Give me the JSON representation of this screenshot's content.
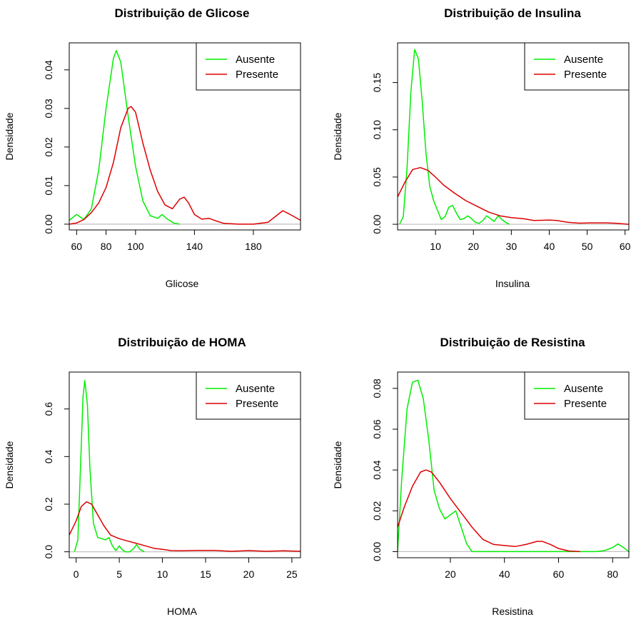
{
  "figure": {
    "ylabel_all": "Densidade"
  },
  "legend_labels": [
    "Ausente",
    "Presente"
  ],
  "colors": {
    "Ausente": "#00ee00",
    "Presente": "#dd0000",
    "baseline": "#bebebe",
    "axis": "#000000"
  },
  "chart_data": [
    {
      "type": "line",
      "title": "Distribuição de Glicose",
      "xlabel": "Glicose",
      "ylabel": "Densidade",
      "xlim": [
        55,
        212
      ],
      "ylim": [
        -0.0015,
        0.047
      ],
      "xticks": [
        60,
        80,
        100,
        140,
        180
      ],
      "yticks": [
        0.0,
        0.01,
        0.02,
        0.03,
        0.04
      ],
      "ytick_labels": [
        "0.00",
        "0.01",
        "0.02",
        "0.03",
        "0.04"
      ],
      "legend": "top-right",
      "series": [
        {
          "name": "Ausente",
          "color": "#00ee00",
          "x": [
            55,
            60,
            65,
            70,
            75,
            80,
            85,
            87,
            90,
            95,
            100,
            105,
            110,
            115,
            118,
            122,
            126,
            130
          ],
          "y": [
            0.001,
            0.0025,
            0.0012,
            0.004,
            0.014,
            0.03,
            0.043,
            0.045,
            0.042,
            0.028,
            0.015,
            0.006,
            0.0022,
            0.0015,
            0.0025,
            0.0012,
            0.0003,
            0.0
          ]
        },
        {
          "name": "Presente",
          "color": "#dd0000",
          "x": [
            55,
            60,
            65,
            70,
            75,
            80,
            85,
            90,
            95,
            97,
            100,
            105,
            110,
            115,
            120,
            125,
            130,
            133,
            136,
            140,
            145,
            150,
            155,
            160,
            170,
            180,
            190,
            195,
            200,
            205,
            212
          ],
          "y": [
            0.0,
            0.0003,
            0.0012,
            0.003,
            0.0055,
            0.0095,
            0.016,
            0.025,
            0.03,
            0.0305,
            0.029,
            0.021,
            0.014,
            0.0085,
            0.005,
            0.004,
            0.0065,
            0.007,
            0.0055,
            0.0025,
            0.0013,
            0.0015,
            0.0008,
            0.0002,
            0.0,
            0.0,
            0.0005,
            0.002,
            0.0035,
            0.0025,
            0.001
          ]
        }
      ]
    },
    {
      "type": "line",
      "title": "Distribuição de Insulina",
      "xlabel": "Insulina",
      "ylabel": "Densidade",
      "xlim": [
        0,
        61
      ],
      "ylim": [
        -0.006,
        0.192
      ],
      "xticks": [
        10,
        20,
        30,
        40,
        50,
        60
      ],
      "yticks": [
        0.0,
        0.05,
        0.1,
        0.15
      ],
      "ytick_labels": [
        "0.00",
        "0.05",
        "0.10",
        "0.15"
      ],
      "legend": "top-right",
      "series": [
        {
          "name": "Ausente",
          "color": "#00ee00",
          "x": [
            0.5,
            1.5,
            2.5,
            3.5,
            4.5,
            5.5,
            6.5,
            7.5,
            8.5,
            9.5,
            10.5,
            11.5,
            12.5,
            13.5,
            14.5,
            15.5,
            16.5,
            17.5,
            18.5,
            19.5,
            20.5,
            21.5,
            22.5,
            23.5,
            24.5,
            25.5,
            26.5,
            27.5,
            28.5,
            29.5
          ],
          "y": [
            0.0,
            0.008,
            0.06,
            0.14,
            0.185,
            0.175,
            0.13,
            0.075,
            0.04,
            0.025,
            0.015,
            0.005,
            0.008,
            0.018,
            0.02,
            0.012,
            0.005,
            0.006,
            0.009,
            0.006,
            0.002,
            0.001,
            0.004,
            0.009,
            0.006,
            0.003,
            0.009,
            0.005,
            0.002,
            0.0
          ]
        },
        {
          "name": "Presente",
          "color": "#dd0000",
          "x": [
            0,
            2,
            4,
            6,
            8,
            10,
            12,
            15,
            18,
            21,
            24,
            27,
            30,
            33,
            36,
            40,
            42,
            45,
            48,
            51,
            55,
            58,
            61
          ],
          "y": [
            0.029,
            0.045,
            0.058,
            0.06,
            0.057,
            0.05,
            0.042,
            0.033,
            0.025,
            0.019,
            0.013,
            0.009,
            0.007,
            0.006,
            0.004,
            0.0045,
            0.004,
            0.002,
            0.0012,
            0.0015,
            0.0015,
            0.001,
            0.0
          ]
        }
      ]
    },
    {
      "type": "line",
      "title": "Distribuição de HOMA",
      "xlabel": "HOMA",
      "ylabel": "Densidade",
      "xlim": [
        -0.8,
        26
      ],
      "ylim": [
        -0.025,
        0.755
      ],
      "xticks": [
        0,
        5,
        10,
        15,
        20,
        25
      ],
      "yticks": [
        0.0,
        0.2,
        0.4,
        0.6
      ],
      "ytick_labels": [
        "0.0",
        "0.2",
        "0.4",
        "0.6"
      ],
      "legend": "top-right",
      "series": [
        {
          "name": "Ausente",
          "color": "#00ee00",
          "x": [
            -0.2,
            0.2,
            0.5,
            0.8,
            1.0,
            1.3,
            1.6,
            2.0,
            2.5,
            3.0,
            3.4,
            3.8,
            4.2,
            4.6,
            5.0,
            5.3,
            5.7,
            6.2,
            6.7,
            7.0,
            7.4,
            7.9
          ],
          "y": [
            0.0,
            0.05,
            0.35,
            0.65,
            0.72,
            0.62,
            0.35,
            0.12,
            0.06,
            0.055,
            0.05,
            0.06,
            0.025,
            0.005,
            0.025,
            0.01,
            0.0,
            0.0,
            0.015,
            0.03,
            0.01,
            0.0
          ]
        },
        {
          "name": "Presente",
          "color": "#dd0000",
          "x": [
            -0.8,
            0,
            0.6,
            1.2,
            1.8,
            2.5,
            3.2,
            4.0,
            5.0,
            6.0,
            7.0,
            8.0,
            9.0,
            10.0,
            11.0,
            12.0,
            14.0,
            16.0,
            18.0,
            20.0,
            22.0,
            24.0,
            26.0
          ],
          "y": [
            0.07,
            0.13,
            0.19,
            0.21,
            0.2,
            0.155,
            0.11,
            0.07,
            0.055,
            0.045,
            0.035,
            0.025,
            0.015,
            0.01,
            0.005,
            0.004,
            0.006,
            0.006,
            0.002,
            0.005,
            0.002,
            0.004,
            0.002
          ]
        }
      ]
    },
    {
      "type": "line",
      "title": "Distribuição de Resistina",
      "xlabel": "Resistina",
      "ylabel": "Densidade",
      "xlim": [
        0.5,
        86
      ],
      "ylim": [
        -0.003,
        0.088
      ],
      "xticks": [
        20,
        40,
        60,
        80
      ],
      "yticks": [
        0.0,
        0.02,
        0.04,
        0.06,
        0.08
      ],
      "ytick_labels": [
        "0.00",
        "0.02",
        "0.04",
        "0.06",
        "0.08"
      ],
      "legend": "top-right",
      "series": [
        {
          "name": "Ausente",
          "color": "#00ee00",
          "x": [
            0.5,
            2,
            4,
            6,
            8,
            10,
            12,
            14,
            16,
            18,
            20,
            22,
            24,
            26,
            28,
            30,
            34,
            40,
            50,
            60,
            70,
            74,
            77,
            80,
            82,
            84,
            86
          ],
          "y": [
            0.0,
            0.035,
            0.07,
            0.083,
            0.084,
            0.075,
            0.055,
            0.03,
            0.021,
            0.016,
            0.018,
            0.02,
            0.012,
            0.004,
            0.0,
            0.0,
            0.0,
            0.0,
            0.0,
            0.0,
            0.0,
            0.0,
            0.0005,
            0.002,
            0.0038,
            0.002,
            0.0
          ]
        },
        {
          "name": "Presente",
          "color": "#dd0000",
          "x": [
            0.5,
            3,
            6,
            9,
            11,
            13,
            16,
            20,
            24,
            28,
            32,
            36,
            40,
            44,
            48,
            52,
            54,
            57,
            60,
            64,
            68
          ],
          "y": [
            0.012,
            0.022,
            0.032,
            0.039,
            0.04,
            0.039,
            0.034,
            0.026,
            0.019,
            0.012,
            0.006,
            0.0035,
            0.003,
            0.0025,
            0.0035,
            0.005,
            0.005,
            0.0035,
            0.0015,
            0.0003,
            0.0
          ]
        }
      ]
    }
  ]
}
